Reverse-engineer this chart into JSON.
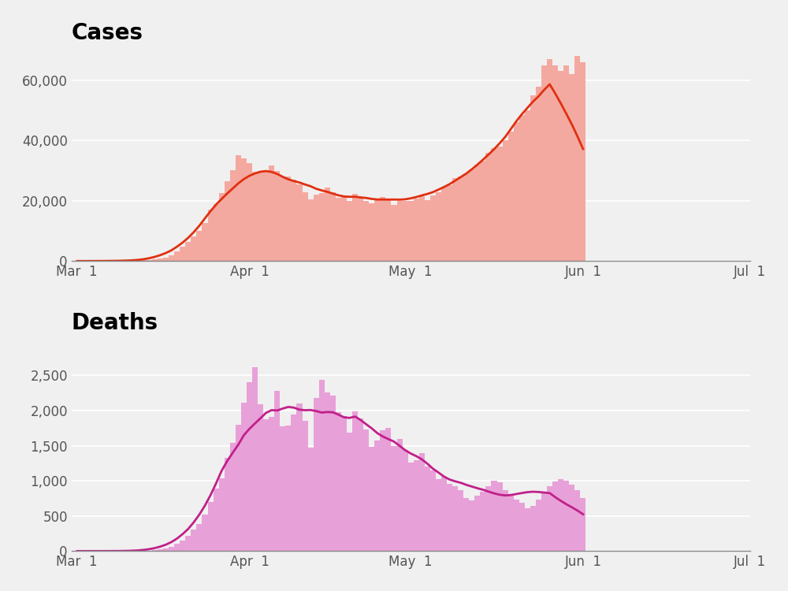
{
  "title_cases": "Cases",
  "title_deaths": "Deaths",
  "bg_color": "#f0f0f0",
  "bar_color_cases": "#f4a9a0",
  "line_color_cases": "#e03010",
  "bar_color_deaths": "#e8a0d8",
  "line_color_deaths": "#c0208a",
  "cases_ylim": [
    0,
    70000
  ],
  "deaths_ylim": [
    0,
    3000
  ],
  "cases_yticks": [
    0,
    20000,
    40000,
    60000
  ],
  "deaths_yticks": [
    0,
    500,
    1000,
    1500,
    2000,
    2500
  ],
  "cases": [
    3,
    2,
    9,
    6,
    8,
    12,
    26,
    45,
    52,
    63,
    100,
    188,
    249,
    307,
    519,
    851,
    1225,
    1903,
    3170,
    4671,
    6320,
    8169,
    10020,
    12597,
    17077,
    18997,
    22552,
    26618,
    30059,
    35108,
    34196,
    32490,
    29529,
    29985,
    29916,
    31746,
    29877,
    28027,
    28137,
    27019,
    25459,
    22750,
    20468,
    21963,
    22516,
    24353,
    22793,
    20891,
    21785,
    20002,
    22196,
    21373,
    19965,
    19105,
    20117,
    21240,
    20613,
    18768,
    20073,
    19980,
    20000,
    20862,
    21456,
    20150,
    21780,
    22860,
    24543,
    25098,
    27652,
    28100,
    28999,
    30542,
    32108,
    33420,
    35999,
    37450,
    38020,
    40020,
    43100,
    46000,
    48521,
    50000,
    55000,
    58000,
    65000,
    67000,
    65000,
    63000,
    65000,
    62000,
    68000,
    66000
  ],
  "deaths": [
    0,
    0,
    0,
    0,
    0,
    0,
    0,
    0,
    0,
    1,
    1,
    3,
    4,
    6,
    11,
    22,
    36,
    58,
    100,
    149,
    212,
    302,
    390,
    520,
    700,
    885,
    1031,
    1329,
    1540,
    1802,
    2108,
    2402,
    2612,
    2087,
    1873,
    1905,
    2283,
    1780,
    1783,
    1939,
    2099,
    1856,
    1478,
    2183,
    2438,
    2254,
    2212,
    1975,
    1917,
    1690,
    1988,
    1885,
    1728,
    1480,
    1568,
    1724,
    1754,
    1494,
    1594,
    1435,
    1265,
    1295,
    1397,
    1202,
    1150,
    1027,
    1059,
    955,
    920,
    867,
    753,
    725,
    790,
    842,
    921,
    1000,
    980,
    867,
    813,
    730,
    683,
    608,
    647,
    735,
    826,
    925,
    987,
    1020,
    998,
    948,
    872,
    760
  ],
  "x_tick_positions": [
    0,
    31,
    60,
    91,
    121
  ],
  "x_tick_labels": [
    "Mar  1",
    "Apr  1",
    "May  1",
    "Jun  1",
    "Jul  1"
  ]
}
